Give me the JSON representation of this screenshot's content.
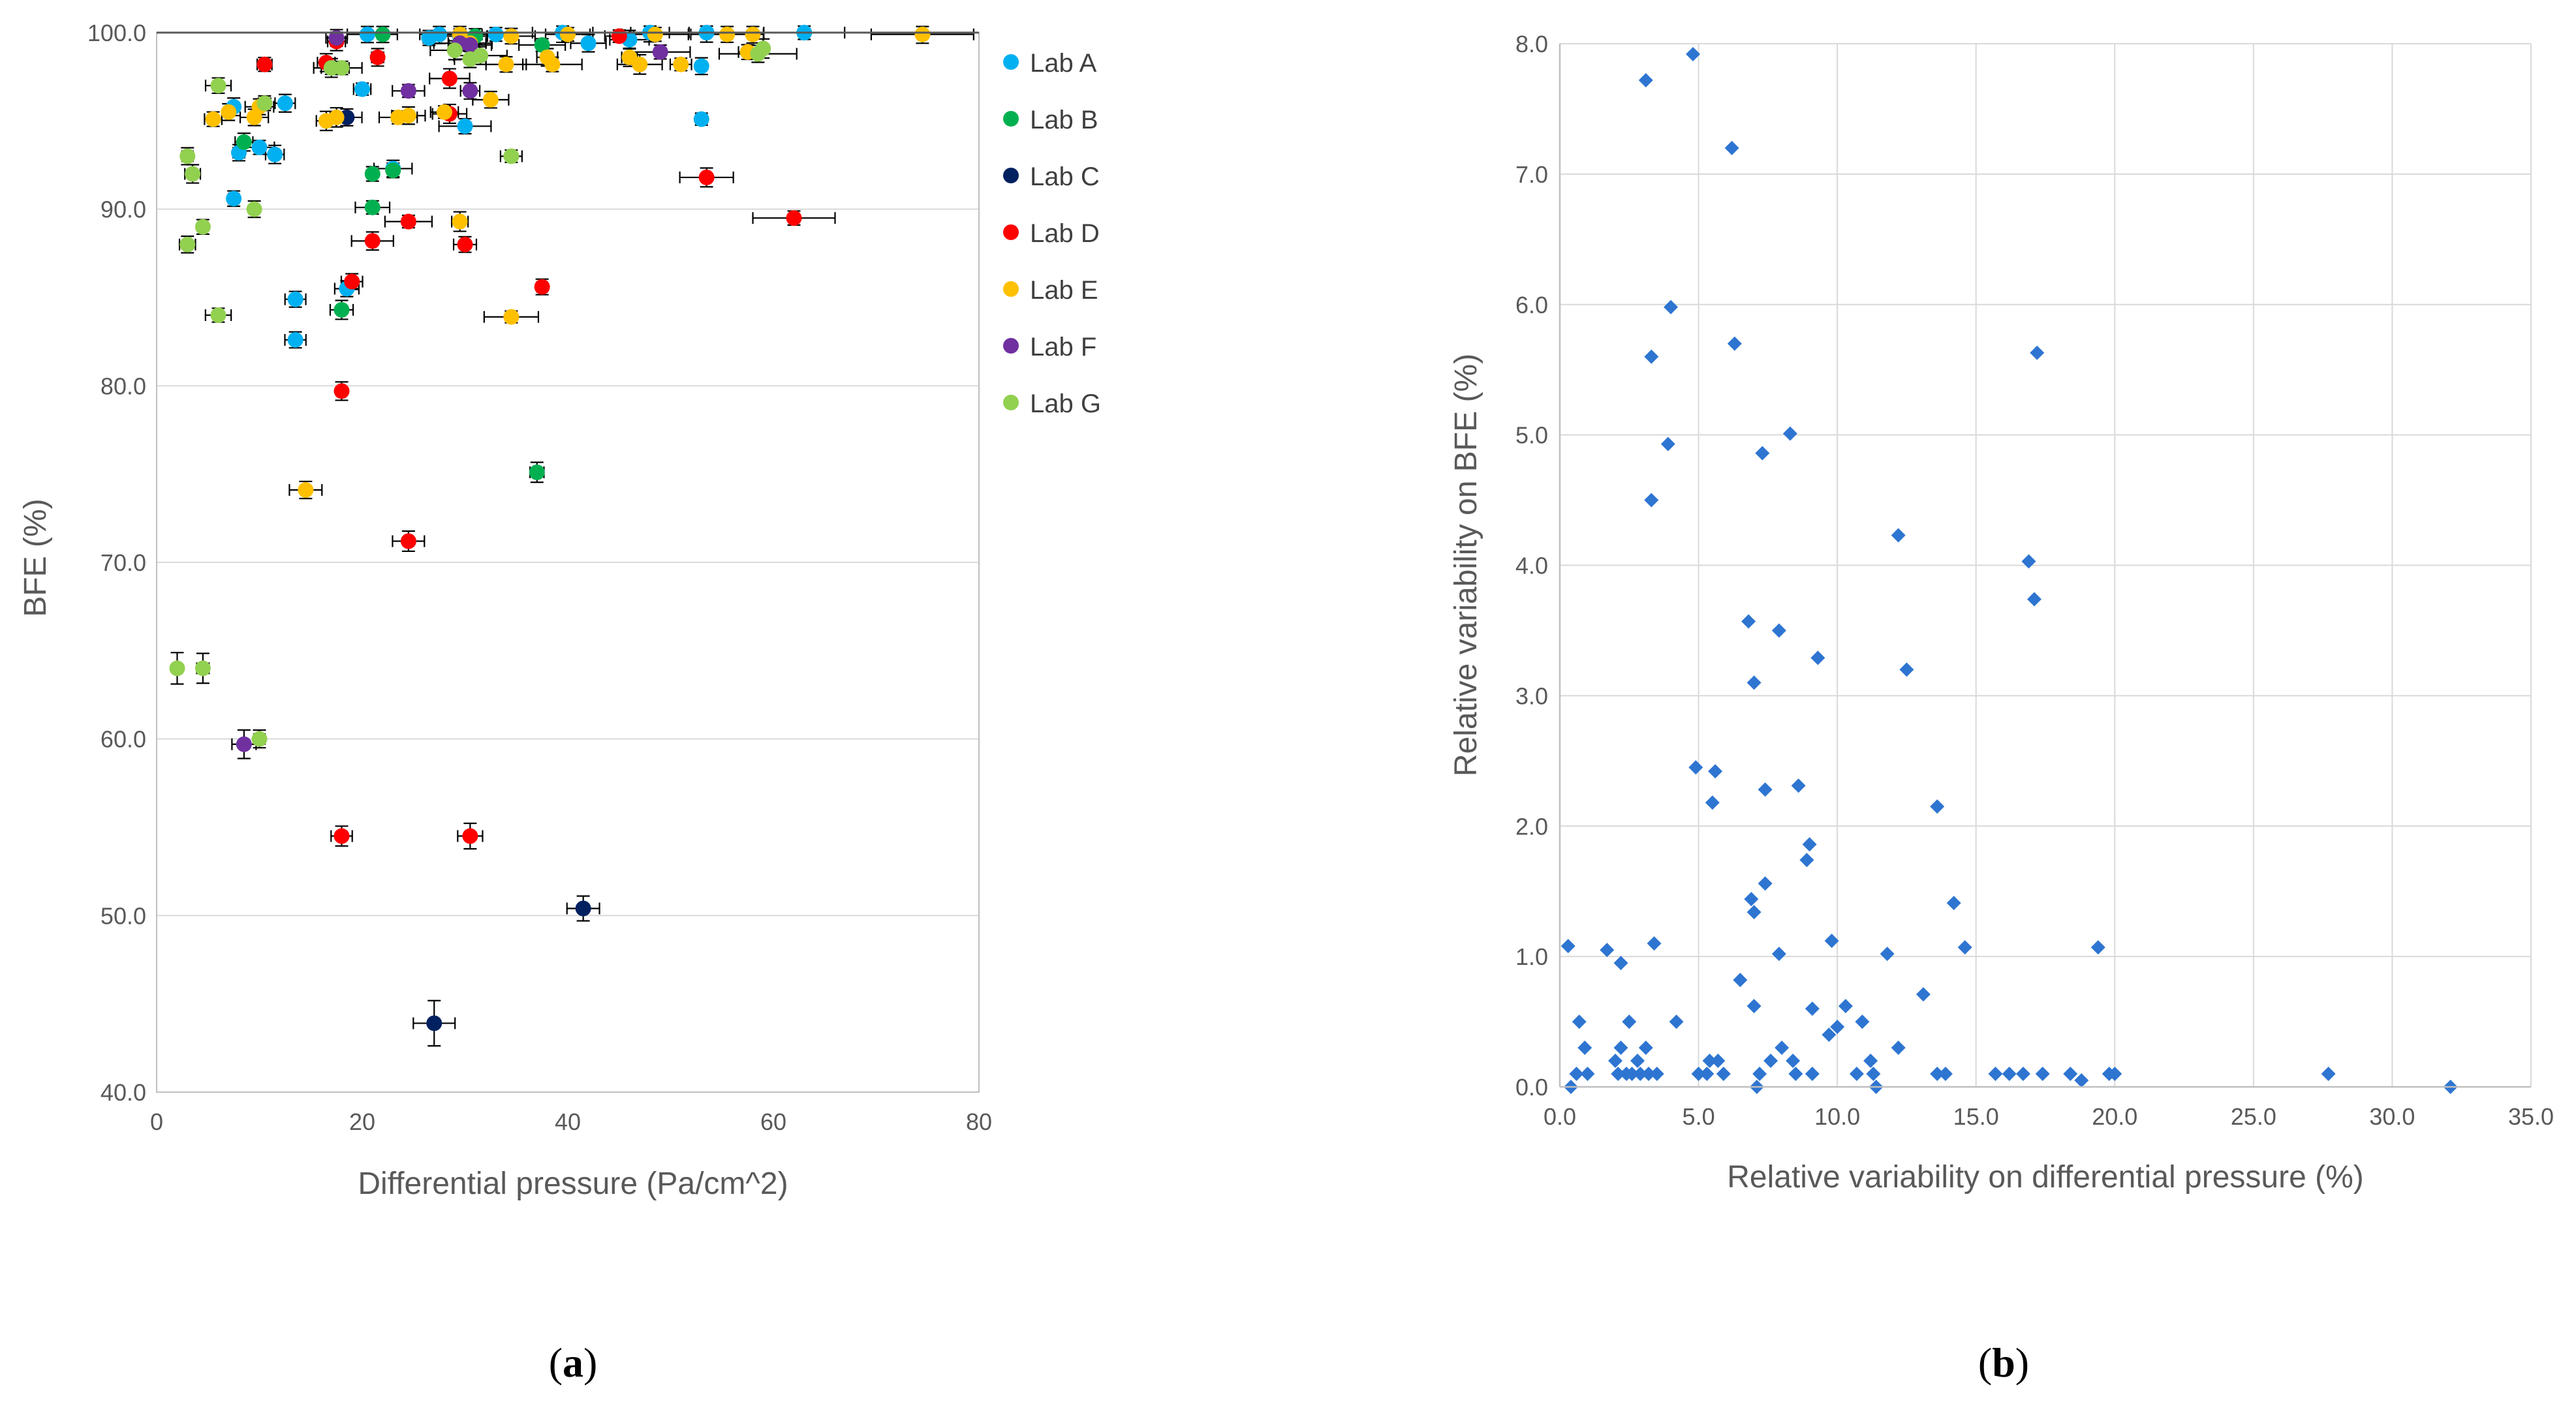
{
  "chart_data": [
    {
      "type": "scatter",
      "panel_label": "(a)",
      "panel_letter": "a",
      "xlabel": "Differential pressure (Pa/cm^2)",
      "ylabel": "BFE (%)",
      "xlim": [
        0,
        80
      ],
      "ylim": [
        40,
        100
      ],
      "x_ticks": [
        "0",
        "20",
        "40",
        "60",
        "80"
      ],
      "y_ticks": [
        "40.0",
        "50.0",
        "60.0",
        "70.0",
        "80.0",
        "90.0",
        "100.0"
      ],
      "grid": "horizontal",
      "error_bars": true,
      "legend_position": "right",
      "series": [
        {
          "name": "Lab A",
          "color": "#00B0F0",
          "points": [
            [
              7.5,
              95.8
            ],
            [
              8,
              93.2
            ],
            [
              7.5,
              90.6
            ],
            [
              10,
              93.5
            ],
            [
              11.5,
              93.1
            ],
            [
              12.5,
              96
            ],
            [
              13.5,
              84.9
            ],
            [
              13.5,
              82.6
            ],
            [
              18.5,
              85.5
            ],
            [
              20,
              96.8
            ],
            [
              20.5,
              99.9
            ],
            [
              23,
              92.3
            ],
            [
              26.5,
              99.7
            ],
            [
              27.5,
              99.9
            ],
            [
              29.5,
              99.8
            ],
            [
              30,
              94.7
            ],
            [
              33,
              99.9
            ],
            [
              39.5,
              100
            ],
            [
              42,
              99.4
            ],
            [
              46,
              99.6
            ],
            [
              48,
              100
            ],
            [
              53,
              95.1
            ],
            [
              53,
              98.1
            ],
            [
              53.5,
              100
            ],
            [
              63,
              100
            ]
          ]
        },
        {
          "name": "Lab B",
          "color": "#00B050",
          "points": [
            [
              8.5,
              93.8
            ],
            [
              17,
              98
            ],
            [
              18,
              84.3
            ],
            [
              21,
              90.1
            ],
            [
              21,
              92
            ],
            [
              22,
              99.9
            ],
            [
              23,
              92.2
            ],
            [
              31,
              99.8
            ],
            [
              37,
              75.1
            ],
            [
              37.5,
              99.3
            ]
          ]
        },
        {
          "name": "Lab C",
          "color": "#002060",
          "points": [
            [
              18.5,
              95.2
            ],
            [
              27,
              43.9
            ],
            [
              41.5,
              50.4
            ]
          ]
        },
        {
          "name": "Lab D",
          "color": "#FF0000",
          "points": [
            [
              10.5,
              98.2
            ],
            [
              16.5,
              98.3
            ],
            [
              17.5,
              99.5
            ],
            [
              18,
              79.7
            ],
            [
              18,
              54.5
            ],
            [
              19,
              85.9
            ],
            [
              21,
              88.2
            ],
            [
              21.5,
              98.6
            ],
            [
              24.5,
              89.3
            ],
            [
              24.5,
              71.2
            ],
            [
              28.5,
              97.4
            ],
            [
              28.5,
              95.4
            ],
            [
              30,
              88
            ],
            [
              30.5,
              54.5
            ],
            [
              37.5,
              85.6
            ],
            [
              45,
              99.8
            ],
            [
              53.5,
              91.8
            ],
            [
              62,
              89.5
            ]
          ]
        },
        {
          "name": "Lab E",
          "color": "#FFC000",
          "points": [
            [
              5.5,
              95.1
            ],
            [
              7,
              95.5
            ],
            [
              9.5,
              95.2
            ],
            [
              10,
              95.8
            ],
            [
              14.5,
              74.1
            ],
            [
              16.5,
              95
            ],
            [
              17.5,
              95.2
            ],
            [
              23.5,
              95.2
            ],
            [
              24.5,
              95.3
            ],
            [
              28,
              95.5
            ],
            [
              29.5,
              89.3
            ],
            [
              29.5,
              99.9
            ],
            [
              30.5,
              99.4
            ],
            [
              32.5,
              96.2
            ],
            [
              34,
              98.2
            ],
            [
              34.5,
              99.8
            ],
            [
              34.5,
              83.9
            ],
            [
              38,
              98.6
            ],
            [
              38.5,
              98.2
            ],
            [
              40,
              99.9
            ],
            [
              46,
              98.6
            ],
            [
              47,
              98.2
            ],
            [
              48.5,
              99.9
            ],
            [
              51,
              98.2
            ],
            [
              55.5,
              99.9
            ],
            [
              57.5,
              98.9
            ],
            [
              58,
              99.9
            ],
            [
              74.5,
              99.9
            ]
          ]
        },
        {
          "name": "Lab F",
          "color": "#7030A0",
          "points": [
            [
              8.5,
              59.7
            ],
            [
              17.5,
              99.7
            ],
            [
              24.5,
              96.7
            ],
            [
              29.5,
              99.4
            ],
            [
              30.5,
              96.7
            ],
            [
              30.5,
              99.3
            ],
            [
              49,
              98.9
            ]
          ]
        },
        {
          "name": "Lab G",
          "color": "#92D050",
          "points": [
            [
              2,
              64
            ],
            [
              3,
              88
            ],
            [
              3,
              93
            ],
            [
              3.5,
              92
            ],
            [
              4.5,
              89
            ],
            [
              4.5,
              64
            ],
            [
              6,
              97
            ],
            [
              6,
              84
            ],
            [
              9.5,
              90
            ],
            [
              10,
              60
            ],
            [
              10.5,
              96
            ],
            [
              17,
              98
            ],
            [
              18,
              98
            ],
            [
              29,
              99
            ],
            [
              30.5,
              98.5
            ],
            [
              31.5,
              98.7
            ],
            [
              34.5,
              93
            ],
            [
              58.5,
              98.8
            ],
            [
              59,
              99.1
            ]
          ]
        }
      ]
    },
    {
      "type": "scatter",
      "panel_label": "(b)",
      "panel_letter": "b",
      "xlabel": "Relative variability on differential pressure (%)",
      "ylabel": "Relative variability on BFE (%)",
      "xlim": [
        0,
        35
      ],
      "ylim": [
        0,
        8
      ],
      "x_ticks": [
        "0.0",
        "5.0",
        "10.0",
        "15.0",
        "20.0",
        "25.0",
        "30.0",
        "35.0"
      ],
      "y_ticks": [
        "0.0",
        "1.0",
        "2.0",
        "3.0",
        "4.0",
        "5.0",
        "6.0",
        "7.0",
        "8.0"
      ],
      "grid": "both",
      "marker": "diamond",
      "color": "#2E75D1",
      "points": [
        [
          0.3,
          1.08
        ],
        [
          0.4,
          0.0
        ],
        [
          0.6,
          0.1
        ],
        [
          0.7,
          0.5
        ],
        [
          0.9,
          0.3
        ],
        [
          1.0,
          0.1
        ],
        [
          1.7,
          1.05
        ],
        [
          2.0,
          0.2
        ],
        [
          2.1,
          0.1
        ],
        [
          2.2,
          0.95
        ],
        [
          2.2,
          0.3
        ],
        [
          2.4,
          0.1
        ],
        [
          2.5,
          0.5
        ],
        [
          2.6,
          0.1
        ],
        [
          2.8,
          0.2
        ],
        [
          2.9,
          0.1
        ],
        [
          3.1,
          7.72
        ],
        [
          3.1,
          0.3
        ],
        [
          3.2,
          0.1
        ],
        [
          3.3,
          5.6
        ],
        [
          3.3,
          4.5
        ],
        [
          3.4,
          1.1
        ],
        [
          3.5,
          0.1
        ],
        [
          3.9,
          4.93
        ],
        [
          4.0,
          5.98
        ],
        [
          4.2,
          0.5
        ],
        [
          4.8,
          7.92
        ],
        [
          4.9,
          2.45
        ],
        [
          5.0,
          0.1
        ],
        [
          5.3,
          0.1
        ],
        [
          5.4,
          0.2
        ],
        [
          5.5,
          2.18
        ],
        [
          5.6,
          2.42
        ],
        [
          5.7,
          0.2
        ],
        [
          5.9,
          0.1
        ],
        [
          6.2,
          7.2
        ],
        [
          6.3,
          5.7
        ],
        [
          6.5,
          0.82
        ],
        [
          6.8,
          3.57
        ],
        [
          6.9,
          1.44
        ],
        [
          7.0,
          3.1
        ],
        [
          7.0,
          1.34
        ],
        [
          7.0,
          0.62
        ],
        [
          7.1,
          0.0
        ],
        [
          7.2,
          0.1
        ],
        [
          7.3,
          4.86
        ],
        [
          7.4,
          2.28
        ],
        [
          7.4,
          1.56
        ],
        [
          7.6,
          0.2
        ],
        [
          7.9,
          3.5
        ],
        [
          7.9,
          1.02
        ],
        [
          8.0,
          0.3
        ],
        [
          8.3,
          5.01
        ],
        [
          8.4,
          0.2
        ],
        [
          8.5,
          0.1
        ],
        [
          8.6,
          2.31
        ],
        [
          8.9,
          1.74
        ],
        [
          9.0,
          1.86
        ],
        [
          9.1,
          0.6
        ],
        [
          9.1,
          0.1
        ],
        [
          9.3,
          3.29
        ],
        [
          9.7,
          0.4
        ],
        [
          9.8,
          1.12
        ],
        [
          10.0,
          0.46
        ],
        [
          10.3,
          0.62
        ],
        [
          10.7,
          0.1
        ],
        [
          10.9,
          0.5
        ],
        [
          11.2,
          0.2
        ],
        [
          11.3,
          0.1
        ],
        [
          11.4,
          0.0
        ],
        [
          11.8,
          1.02
        ],
        [
          12.2,
          4.23
        ],
        [
          12.2,
          0.3
        ],
        [
          12.5,
          3.2
        ],
        [
          13.1,
          0.71
        ],
        [
          13.6,
          2.15
        ],
        [
          13.6,
          0.1
        ],
        [
          13.9,
          0.1
        ],
        [
          14.2,
          1.41
        ],
        [
          14.6,
          1.07
        ],
        [
          15.7,
          0.1
        ],
        [
          16.2,
          0.1
        ],
        [
          16.7,
          0.1
        ],
        [
          16.9,
          4.03
        ],
        [
          17.1,
          3.74
        ],
        [
          17.2,
          5.63
        ],
        [
          17.4,
          0.1
        ],
        [
          18.4,
          0.1
        ],
        [
          18.8,
          0.05
        ],
        [
          19.4,
          1.07
        ],
        [
          19.8,
          0.1
        ],
        [
          20.0,
          0.1
        ],
        [
          27.7,
          0.1
        ],
        [
          32.1,
          0.0
        ]
      ]
    }
  ]
}
